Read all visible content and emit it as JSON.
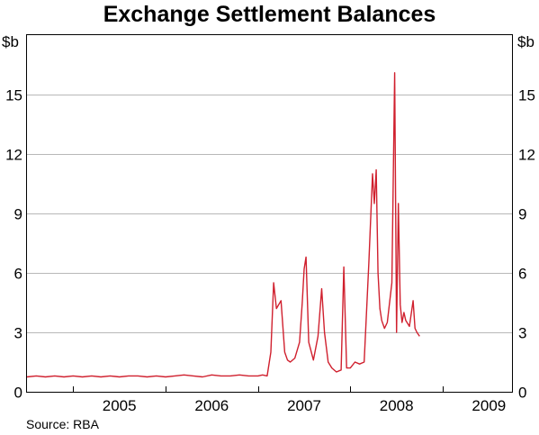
{
  "chart_data": {
    "type": "line",
    "title": "Exchange Settlement Balances",
    "y_unit_left": "$b",
    "y_unit_right": "$b",
    "source": "Source: RBA",
    "ylim": [
      0,
      18
    ],
    "yticks": [
      0,
      3,
      6,
      9,
      12,
      15
    ],
    "xlim": [
      2004.5,
      2009.75
    ],
    "xticks": [
      "2005",
      "2006",
      "2007",
      "2008",
      "2009"
    ],
    "grid": true,
    "legend": "none",
    "series_color": "#d0202e",
    "series": [
      {
        "x": [
          2004.5,
          2004.6,
          2004.7,
          2004.8,
          2004.9,
          2005.0,
          2005.1,
          2005.2,
          2005.3,
          2005.4,
          2005.5,
          2005.6,
          2005.7,
          2005.8,
          2005.9,
          2006.0,
          2006.1,
          2006.2,
          2006.3,
          2006.4,
          2006.5,
          2006.6,
          2006.7,
          2006.8,
          2006.9,
          2007.0,
          2007.05,
          2007.1,
          2007.14,
          2007.17,
          2007.2,
          2007.25,
          2007.29,
          2007.32,
          2007.35,
          2007.4,
          2007.45,
          2007.48,
          2007.5,
          2007.52,
          2007.55,
          2007.6,
          2007.65,
          2007.69,
          2007.72,
          2007.76,
          2007.8,
          2007.85,
          2007.9,
          2007.93,
          2007.96,
          2008.0,
          2008.05,
          2008.1,
          2008.15,
          2008.2,
          2008.24,
          2008.26,
          2008.28,
          2008.3,
          2008.32,
          2008.34,
          2008.37,
          2008.4,
          2008.45,
          2008.48,
          2008.5,
          2008.52,
          2008.54,
          2008.56,
          2008.58,
          2008.6,
          2008.64,
          2008.68,
          2008.7,
          2008.72,
          2008.75
        ],
        "y": [
          0.75,
          0.8,
          0.75,
          0.8,
          0.75,
          0.8,
          0.75,
          0.8,
          0.75,
          0.8,
          0.75,
          0.8,
          0.8,
          0.75,
          0.8,
          0.75,
          0.8,
          0.85,
          0.8,
          0.75,
          0.85,
          0.8,
          0.8,
          0.85,
          0.8,
          0.8,
          0.85,
          0.8,
          2.0,
          5.5,
          4.2,
          4.6,
          2.0,
          1.6,
          1.5,
          1.7,
          2.5,
          4.5,
          6.2,
          6.8,
          2.5,
          1.6,
          2.8,
          5.2,
          3.0,
          1.5,
          1.2,
          1.0,
          1.1,
          6.3,
          1.2,
          1.2,
          1.5,
          1.4,
          1.5,
          6.5,
          11.0,
          9.5,
          11.2,
          6.0,
          4.2,
          3.6,
          3.2,
          3.5,
          5.5,
          16.1,
          3.0,
          9.5,
          4.4,
          3.5,
          4.0,
          3.6,
          3.3,
          4.6,
          3.2,
          3.0,
          2.8
        ]
      }
    ]
  }
}
